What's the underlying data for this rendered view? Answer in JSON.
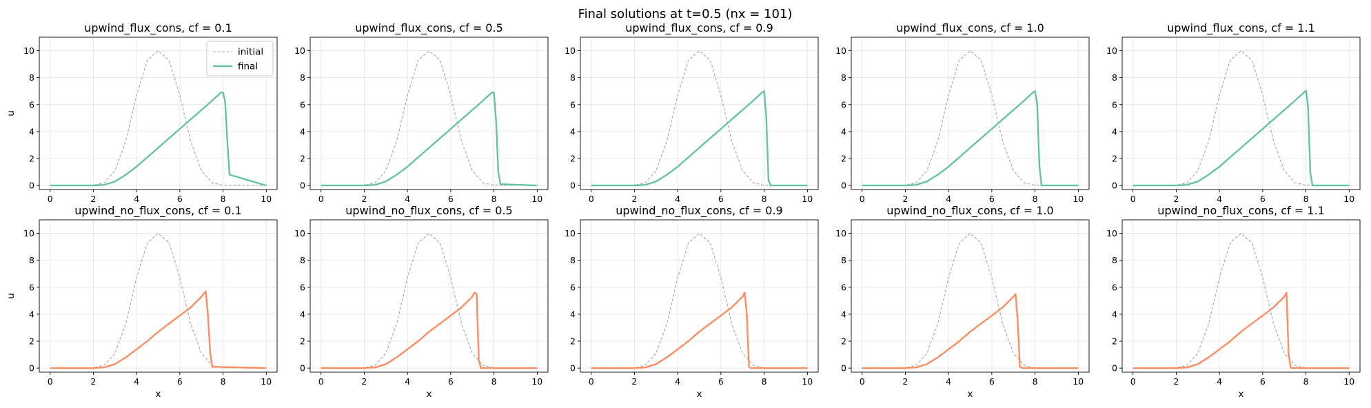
{
  "figure": {
    "title": "Final solutions at t=0.5 (nx = 101)"
  },
  "chart_data": [
    {
      "type": "line",
      "title": "upwind_flux_cons, cf = 0.1",
      "xlabel": "",
      "ylabel": "u",
      "xlim": [
        -0.5,
        10.5
      ],
      "ylim": [
        -0.3,
        11
      ],
      "xticks": [
        0,
        2,
        4,
        6,
        8,
        10
      ],
      "yticks": [
        0,
        2,
        4,
        6,
        8,
        10
      ],
      "grid": true,
      "legend": {
        "position": "top-right",
        "entries": [
          "initial",
          "final"
        ]
      },
      "series": [
        {
          "name": "initial",
          "style": "dashed",
          "color": "#a6a6a6",
          "x": [
            0,
            2,
            2.5,
            3,
            3.5,
            4,
            4.5,
            5,
            5.5,
            6,
            6.5,
            7,
            7.5,
            8,
            10
          ],
          "y": [
            0,
            0.02,
            0.2,
            1.1,
            3.3,
            6.7,
            9.3,
            10,
            9.3,
            6.7,
            3.3,
            1.1,
            0.2,
            0.02,
            0
          ]
        },
        {
          "name": "final",
          "style": "solid",
          "color": "#66c2a5",
          "x": [
            0,
            2,
            2.5,
            3,
            3.5,
            4,
            4.5,
            5,
            5.5,
            6,
            6.5,
            7,
            7.5,
            7.9,
            8.0,
            8.1,
            8.2,
            8.3,
            10
          ],
          "y": [
            0,
            0,
            0.05,
            0.3,
            0.8,
            1.4,
            2.1,
            2.8,
            3.5,
            4.2,
            4.9,
            5.6,
            6.3,
            6.9,
            6.9,
            6.2,
            3.2,
            0.8,
            0
          ]
        }
      ]
    },
    {
      "type": "line",
      "title": "upwind_flux_cons, cf = 0.5",
      "xlabel": "",
      "ylabel": "",
      "xlim": [
        -0.5,
        10.5
      ],
      "ylim": [
        -0.3,
        11
      ],
      "xticks": [
        0,
        2,
        4,
        6,
        8,
        10
      ],
      "yticks": [
        0,
        2,
        4,
        6,
        8,
        10
      ],
      "grid": true,
      "series": [
        {
          "name": "initial",
          "style": "dashed",
          "color": "#a6a6a6",
          "x": [
            0,
            2,
            2.5,
            3,
            3.5,
            4,
            4.5,
            5,
            5.5,
            6,
            6.5,
            7,
            7.5,
            8,
            10
          ],
          "y": [
            0,
            0.02,
            0.2,
            1.1,
            3.3,
            6.7,
            9.3,
            10,
            9.3,
            6.7,
            3.3,
            1.1,
            0.2,
            0.02,
            0
          ]
        },
        {
          "name": "final",
          "style": "solid",
          "color": "#66c2a5",
          "x": [
            0,
            2,
            2.5,
            3,
            3.5,
            4,
            4.5,
            5,
            5.5,
            6,
            6.5,
            7,
            7.5,
            7.9,
            8.0,
            8.1,
            8.2,
            8.3,
            10
          ],
          "y": [
            0,
            0,
            0.05,
            0.3,
            0.8,
            1.4,
            2.1,
            2.8,
            3.5,
            4.2,
            4.9,
            5.6,
            6.3,
            6.9,
            6.9,
            4.8,
            1.0,
            0.1,
            0
          ]
        }
      ]
    },
    {
      "type": "line",
      "title": "upwind_flux_cons, cf = 0.9",
      "xlabel": "",
      "ylabel": "",
      "xlim": [
        -0.5,
        10.5
      ],
      "ylim": [
        -0.3,
        11
      ],
      "xticks": [
        0,
        2,
        4,
        6,
        8,
        10
      ],
      "yticks": [
        0,
        2,
        4,
        6,
        8,
        10
      ],
      "grid": true,
      "series": [
        {
          "name": "initial",
          "style": "dashed",
          "color": "#a6a6a6",
          "x": [
            0,
            2,
            2.5,
            3,
            3.5,
            4,
            4.5,
            5,
            5.5,
            6,
            6.5,
            7,
            7.5,
            8,
            10
          ],
          "y": [
            0,
            0.02,
            0.2,
            1.1,
            3.3,
            6.7,
            9.3,
            10,
            9.3,
            6.7,
            3.3,
            1.1,
            0.2,
            0.02,
            0
          ]
        },
        {
          "name": "final",
          "style": "solid",
          "color": "#66c2a5",
          "x": [
            0,
            2,
            2.5,
            3,
            3.5,
            4,
            4.5,
            5,
            5.5,
            6,
            6.5,
            7,
            7.5,
            7.9,
            8.0,
            8.1,
            8.2,
            8.3,
            10
          ],
          "y": [
            0,
            0,
            0.05,
            0.3,
            0.8,
            1.4,
            2.1,
            2.8,
            3.5,
            4.2,
            4.9,
            5.6,
            6.3,
            6.9,
            7.0,
            5.0,
            0.4,
            0,
            0
          ]
        }
      ]
    },
    {
      "type": "line",
      "title": "upwind_flux_cons, cf = 1.0",
      "xlabel": "",
      "ylabel": "",
      "xlim": [
        -0.5,
        10.5
      ],
      "ylim": [
        -0.3,
        11
      ],
      "xticks": [
        0,
        2,
        4,
        6,
        8,
        10
      ],
      "yticks": [
        0,
        2,
        4,
        6,
        8,
        10
      ],
      "grid": true,
      "series": [
        {
          "name": "initial",
          "style": "dashed",
          "color": "#a6a6a6",
          "x": [
            0,
            2,
            2.5,
            3,
            3.5,
            4,
            4.5,
            5,
            5.5,
            6,
            6.5,
            7,
            7.5,
            8,
            10
          ],
          "y": [
            0,
            0.02,
            0.2,
            1.1,
            3.3,
            6.7,
            9.3,
            10,
            9.3,
            6.7,
            3.3,
            1.1,
            0.2,
            0.02,
            0
          ]
        },
        {
          "name": "final",
          "style": "solid",
          "color": "#66c2a5",
          "x": [
            0,
            2,
            2.5,
            3,
            3.5,
            4,
            4.5,
            5,
            5.5,
            6,
            6.5,
            7,
            7.5,
            7.9,
            8.0,
            8.1,
            8.2,
            8.3,
            10
          ],
          "y": [
            0,
            0,
            0.05,
            0.3,
            0.8,
            1.4,
            2.1,
            2.8,
            3.5,
            4.2,
            4.9,
            5.6,
            6.3,
            6.9,
            7.0,
            6.0,
            1.5,
            0,
            0
          ]
        }
      ]
    },
    {
      "type": "line",
      "title": "upwind_flux_cons, cf = 1.1",
      "xlabel": "",
      "ylabel": "",
      "xlim": [
        -0.5,
        10.5
      ],
      "ylim": [
        -0.3,
        11
      ],
      "xticks": [
        0,
        2,
        4,
        6,
        8,
        10
      ],
      "yticks": [
        0,
        2,
        4,
        6,
        8,
        10
      ],
      "grid": true,
      "series": [
        {
          "name": "initial",
          "style": "dashed",
          "color": "#a6a6a6",
          "x": [
            0,
            2,
            2.5,
            3,
            3.5,
            4,
            4.5,
            5,
            5.5,
            6,
            6.5,
            7,
            7.5,
            8,
            10
          ],
          "y": [
            0,
            0.02,
            0.2,
            1.1,
            3.3,
            6.7,
            9.3,
            10,
            9.3,
            6.7,
            3.3,
            1.1,
            0.2,
            0.02,
            0
          ]
        },
        {
          "name": "final",
          "style": "solid",
          "color": "#66c2a5",
          "x": [
            0,
            2,
            2.5,
            3,
            3.5,
            4,
            4.5,
            5,
            5.5,
            6,
            6.5,
            7,
            7.5,
            7.9,
            8.0,
            8.1,
            8.2,
            8.3,
            10
          ],
          "y": [
            0,
            0,
            0.05,
            0.3,
            0.8,
            1.4,
            2.1,
            2.8,
            3.5,
            4.2,
            4.9,
            5.6,
            6.3,
            6.9,
            7.05,
            5.8,
            1.0,
            0,
            0
          ]
        }
      ]
    },
    {
      "type": "line",
      "title": "upwind_no_flux_cons, cf = 0.1",
      "xlabel": "x",
      "ylabel": "u",
      "xlim": [
        -0.5,
        10.5
      ],
      "ylim": [
        -0.3,
        11
      ],
      "xticks": [
        0,
        2,
        4,
        6,
        8,
        10
      ],
      "yticks": [
        0,
        2,
        4,
        6,
        8,
        10
      ],
      "grid": true,
      "series": [
        {
          "name": "initial",
          "style": "dashed",
          "color": "#a6a6a6",
          "x": [
            0,
            2,
            2.5,
            3,
            3.5,
            4,
            4.5,
            5,
            5.5,
            6,
            6.5,
            7,
            7.5,
            8,
            10
          ],
          "y": [
            0,
            0.02,
            0.2,
            1.1,
            3.3,
            6.7,
            9.3,
            10,
            9.3,
            6.7,
            3.3,
            1.1,
            0.2,
            0.02,
            0
          ]
        },
        {
          "name": "final",
          "style": "solid",
          "color": "#fc8d62",
          "x": [
            0,
            2,
            2.5,
            3,
            3.5,
            4,
            4.5,
            5,
            5.5,
            6,
            6.5,
            7,
            7.2,
            7.3,
            7.4,
            7.5,
            10
          ],
          "y": [
            0,
            0,
            0.05,
            0.3,
            0.8,
            1.4,
            2.0,
            2.7,
            3.3,
            3.9,
            4.5,
            5.3,
            5.7,
            4.0,
            1.2,
            0.1,
            0
          ]
        }
      ]
    },
    {
      "type": "line",
      "title": "upwind_no_flux_cons, cf = 0.5",
      "xlabel": "x",
      "ylabel": "",
      "xlim": [
        -0.5,
        10.5
      ],
      "ylim": [
        -0.3,
        11
      ],
      "xticks": [
        0,
        2,
        4,
        6,
        8,
        10
      ],
      "yticks": [
        0,
        2,
        4,
        6,
        8,
        10
      ],
      "grid": true,
      "series": [
        {
          "name": "initial",
          "style": "dashed",
          "color": "#a6a6a6",
          "x": [
            0,
            2,
            2.5,
            3,
            3.5,
            4,
            4.5,
            5,
            5.5,
            6,
            6.5,
            7,
            7.5,
            8,
            10
          ],
          "y": [
            0,
            0.02,
            0.2,
            1.1,
            3.3,
            6.7,
            9.3,
            10,
            9.3,
            6.7,
            3.3,
            1.1,
            0.2,
            0.02,
            0
          ]
        },
        {
          "name": "final",
          "style": "solid",
          "color": "#fc8d62",
          "x": [
            0,
            2,
            2.5,
            3,
            3.5,
            4,
            4.5,
            5,
            5.5,
            6,
            6.5,
            7,
            7.1,
            7.2,
            7.3,
            7.4,
            10
          ],
          "y": [
            0,
            0,
            0.05,
            0.3,
            0.8,
            1.4,
            2.0,
            2.7,
            3.3,
            3.9,
            4.5,
            5.3,
            5.6,
            5.5,
            0.6,
            0,
            0
          ]
        }
      ]
    },
    {
      "type": "line",
      "title": "upwind_no_flux_cons, cf = 0.9",
      "xlabel": "x",
      "ylabel": "",
      "xlim": [
        -0.5,
        10.5
      ],
      "ylim": [
        -0.3,
        11
      ],
      "xticks": [
        0,
        2,
        4,
        6,
        8,
        10
      ],
      "yticks": [
        0,
        2,
        4,
        6,
        8,
        10
      ],
      "grid": true,
      "series": [
        {
          "name": "initial",
          "style": "dashed",
          "color": "#a6a6a6",
          "x": [
            0,
            2,
            2.5,
            3,
            3.5,
            4,
            4.5,
            5,
            5.5,
            6,
            6.5,
            7,
            7.5,
            8,
            10
          ],
          "y": [
            0,
            0.02,
            0.2,
            1.1,
            3.3,
            6.7,
            9.3,
            10,
            9.3,
            6.7,
            3.3,
            1.1,
            0.2,
            0.02,
            0
          ]
        },
        {
          "name": "final",
          "style": "solid",
          "color": "#fc8d62",
          "x": [
            0,
            2,
            2.5,
            3,
            3.5,
            4,
            4.5,
            5,
            5.5,
            6,
            6.5,
            7,
            7.1,
            7.2,
            7.3,
            7.4,
            10
          ],
          "y": [
            0,
            0,
            0.05,
            0.3,
            0.8,
            1.4,
            2.0,
            2.7,
            3.3,
            3.9,
            4.5,
            5.3,
            5.6,
            3.9,
            0.1,
            0,
            0
          ]
        }
      ]
    },
    {
      "type": "line",
      "title": "upwind_no_flux_cons, cf = 1.0",
      "xlabel": "x",
      "ylabel": "",
      "xlim": [
        -0.5,
        10.5
      ],
      "ylim": [
        -0.3,
        11
      ],
      "xticks": [
        0,
        2,
        4,
        6,
        8,
        10
      ],
      "yticks": [
        0,
        2,
        4,
        6,
        8,
        10
      ],
      "grid": true,
      "series": [
        {
          "name": "initial",
          "style": "dashed",
          "color": "#a6a6a6",
          "x": [
            0,
            2,
            2.5,
            3,
            3.5,
            4,
            4.5,
            5,
            5.5,
            6,
            6.5,
            7,
            7.5,
            8,
            10
          ],
          "y": [
            0,
            0.02,
            0.2,
            1.1,
            3.3,
            6.7,
            9.3,
            10,
            9.3,
            6.7,
            3.3,
            1.1,
            0.2,
            0.02,
            0
          ]
        },
        {
          "name": "final",
          "style": "solid",
          "color": "#fc8d62",
          "x": [
            0,
            2,
            2.5,
            3,
            3.5,
            4,
            4.5,
            5,
            5.5,
            6,
            6.5,
            7,
            7.1,
            7.2,
            7.3,
            7.4,
            10
          ],
          "y": [
            0,
            0,
            0.05,
            0.3,
            0.8,
            1.4,
            2.0,
            2.7,
            3.3,
            3.9,
            4.5,
            5.3,
            5.5,
            3.4,
            0.1,
            0,
            0
          ]
        }
      ]
    },
    {
      "type": "line",
      "title": "upwind_no_flux_cons, cf = 1.1",
      "xlabel": "x",
      "ylabel": "",
      "xlim": [
        -0.5,
        10.5
      ],
      "ylim": [
        -0.3,
        11
      ],
      "xticks": [
        0,
        2,
        4,
        6,
        8,
        10
      ],
      "yticks": [
        0,
        2,
        4,
        6,
        8,
        10
      ],
      "grid": true,
      "series": [
        {
          "name": "initial",
          "style": "dashed",
          "color": "#a6a6a6",
          "x": [
            0,
            2,
            2.5,
            3,
            3.5,
            4,
            4.5,
            5,
            5.5,
            6,
            6.5,
            7,
            7.5,
            8,
            10
          ],
          "y": [
            0,
            0.02,
            0.2,
            1.1,
            3.3,
            6.7,
            9.3,
            10,
            9.3,
            6.7,
            3.3,
            1.1,
            0.2,
            0.02,
            0
          ]
        },
        {
          "name": "final",
          "style": "solid",
          "color": "#fc8d62",
          "x": [
            0,
            2,
            2.5,
            3,
            3.5,
            4,
            4.5,
            5,
            5.5,
            6,
            6.5,
            7,
            7.1,
            7.2,
            7.3,
            7.4,
            10
          ],
          "y": [
            0,
            0,
            0.05,
            0.3,
            0.8,
            1.4,
            2.0,
            2.7,
            3.3,
            3.9,
            4.5,
            5.3,
            5.6,
            1.0,
            0,
            0,
            0
          ]
        }
      ]
    }
  ]
}
